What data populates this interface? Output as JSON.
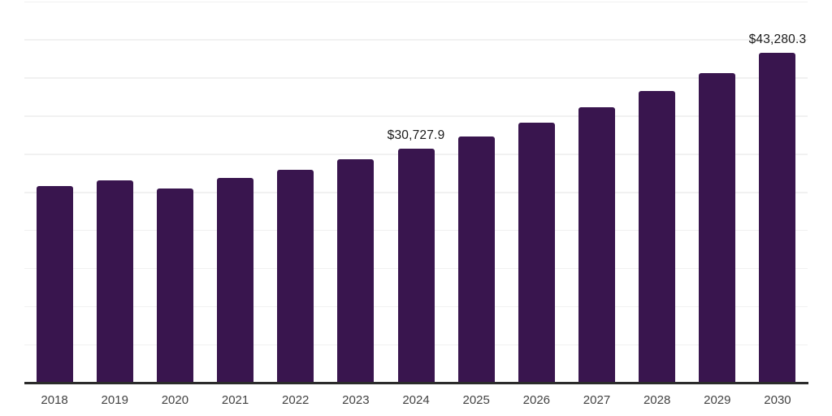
{
  "chart_data": {
    "type": "bar",
    "title": "",
    "xlabel": "",
    "ylabel": "",
    "categories": [
      "2018",
      "2019",
      "2020",
      "2021",
      "2022",
      "2023",
      "2024",
      "2025",
      "2026",
      "2027",
      "2028",
      "2029",
      "2030"
    ],
    "values": [
      25750,
      26600,
      25450,
      26900,
      27900,
      29350,
      30727.9,
      32350,
      34150,
      36150,
      38250,
      40600,
      43280.3
    ],
    "data_labels": [
      "",
      "",
      "",
      "",
      "",
      "",
      "$30,727.9",
      "",
      "",
      "",
      "",
      "",
      "$43,280.3"
    ],
    "ylim": [
      0,
      50000
    ],
    "grid_interval": 5000,
    "grid": true,
    "y_tick_labels_visible": false,
    "legend_position": "none"
  },
  "colors": {
    "background": "#ffffff",
    "bar": "#39154e",
    "gridline": "#f1f1f1",
    "axis_line": "#2b2b2b",
    "data_label_text": "#1a1a1a",
    "x_tick_label_text": "#424242"
  }
}
